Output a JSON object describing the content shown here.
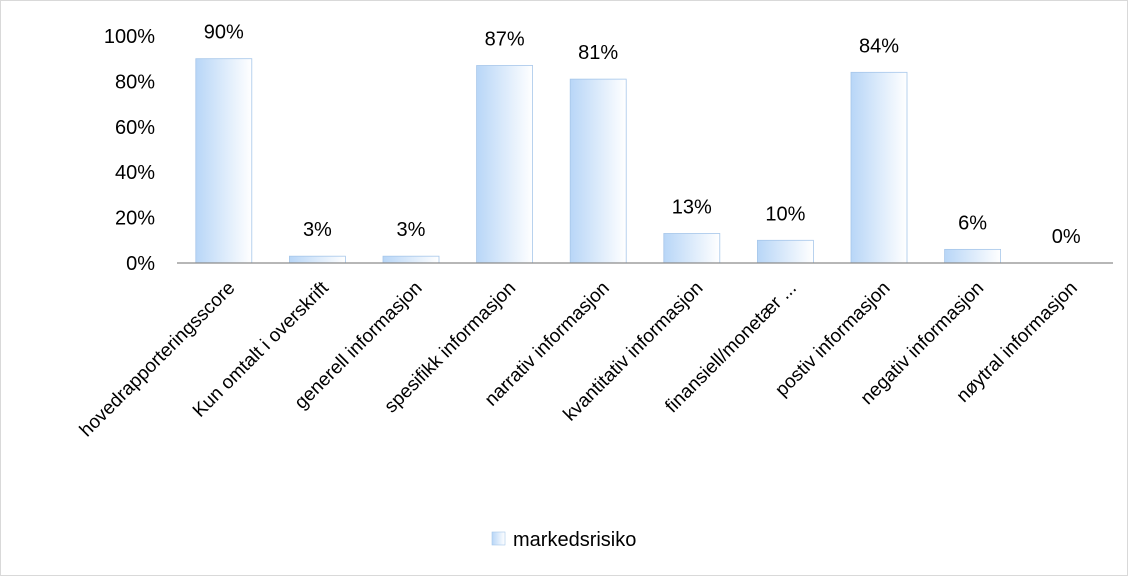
{
  "chart_data": {
    "type": "bar",
    "title": "",
    "xlabel": "",
    "ylabel": "",
    "categories": [
      "hovedrapporteringsscore",
      "Kun omtalt i overskrift",
      "generell informasjon",
      "spesifikk informasjon",
      "narrativ informasjon",
      "kvantitativ informasjon",
      "finansiell/monetær ...",
      "postiv informasjon",
      "negativ informasjon",
      "nøytral informasjon"
    ],
    "series": [
      {
        "name": "markedsrisiko",
        "values": [
          90,
          3,
          3,
          87,
          81,
          13,
          10,
          84,
          6,
          0
        ],
        "data_labels": [
          "90%",
          "3%",
          "3%",
          "87%",
          "81%",
          "13%",
          "10%",
          "84%",
          "6%",
          "0%"
        ]
      }
    ],
    "ylim": [
      0,
      100
    ],
    "yticks": [
      0,
      20,
      40,
      60,
      80,
      100
    ],
    "ytick_labels": [
      "0%",
      "20%",
      "40%",
      "60%",
      "80%",
      "100%"
    ],
    "grid": false,
    "legend_position": "bottom",
    "bar_color_light": "#ffffff",
    "bar_color_dark": "#b8d6f7",
    "bar_edge_color": "#a6c6ea"
  }
}
